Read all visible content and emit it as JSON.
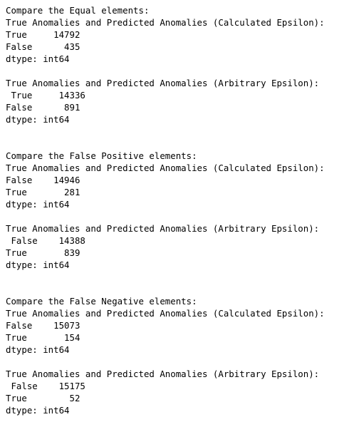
{
  "output": {
    "lines": [
      "Compare the Equal elements:",
      "True Anomalies and Predicted Anomalies (Calculated Epsilon):",
      "True     14792",
      "False      435",
      "dtype: int64",
      "",
      "True Anomalies and Predicted Anomalies (Arbitrary Epsilon):",
      " True     14336",
      "False      891",
      "dtype: int64",
      "",
      "",
      "Compare the False Positive elements:",
      "True Anomalies and Predicted Anomalies (Calculated Epsilon):",
      "False    14946",
      "True       281",
      "dtype: int64",
      "",
      "True Anomalies and Predicted Anomalies (Arbitrary Epsilon):",
      " False    14388",
      "True       839",
      "dtype: int64",
      "",
      "",
      "Compare the False Negative elements:",
      "True Anomalies and Predicted Anomalies (Calculated Epsilon):",
      "False    15073",
      "True       154",
      "dtype: int64",
      "",
      "True Anomalies and Predicted Anomalies (Arbitrary Epsilon):",
      " False    15175",
      "True        52",
      "dtype: int64"
    ]
  }
}
